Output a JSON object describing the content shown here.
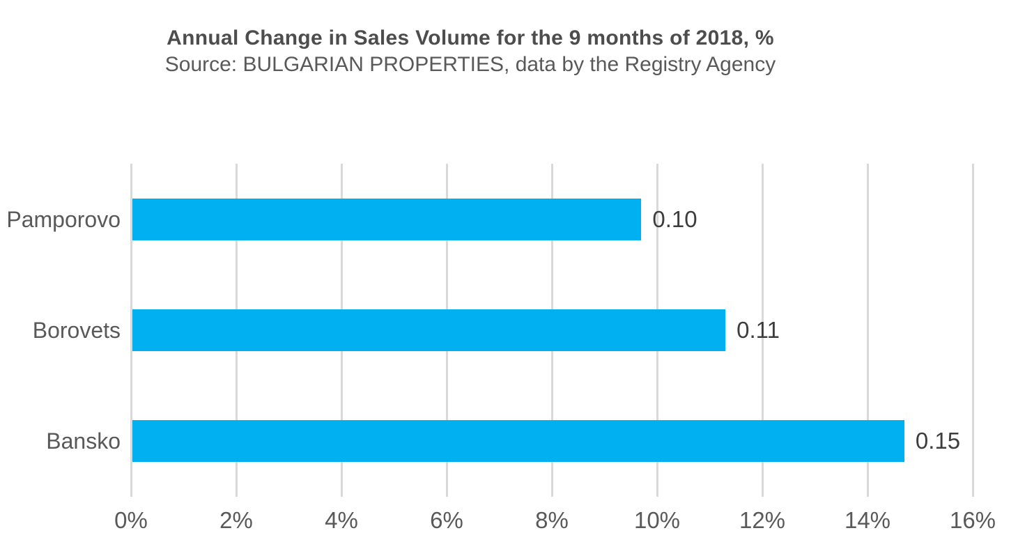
{
  "header": {
    "title": "Annual Change in Sales Volume for the 9 months of 2018, %",
    "subtitle": "Source: BULGARIAN PROPERTIES, data by the Registry Agency"
  },
  "chart_data": {
    "type": "bar",
    "orientation": "horizontal",
    "title": "Annual Change in Sales Volume for the 9 months of 2018, %",
    "subtitle": "Source: BULGARIAN PROPERTIES, data by the Registry Agency",
    "categories": [
      "Pamporovo",
      "Borovets",
      "Bansko"
    ],
    "values_percent": [
      9.7,
      11.3,
      14.7
    ],
    "data_labels": [
      "0.10",
      "0.11",
      "0.15"
    ],
    "xlabel": "",
    "ylabel": "",
    "xlim": [
      0,
      16
    ],
    "x_ticks": [
      0,
      2,
      4,
      6,
      8,
      10,
      12,
      14,
      16
    ],
    "x_tick_labels": [
      "0%",
      "2%",
      "4%",
      "6%",
      "8%",
      "10%",
      "12%",
      "14%",
      "16%"
    ],
    "grid": "vertical-gridlines-on",
    "legend_position": "none"
  },
  "colors": {
    "bar": "#00B0F0",
    "gridline": "#D9D9D9",
    "title": "#4D4D4D",
    "subtitle": "#595959",
    "category_label": "#595959",
    "axis_label": "#595959",
    "data_label": "#3D3D3D",
    "background": "#FFFFFF"
  }
}
